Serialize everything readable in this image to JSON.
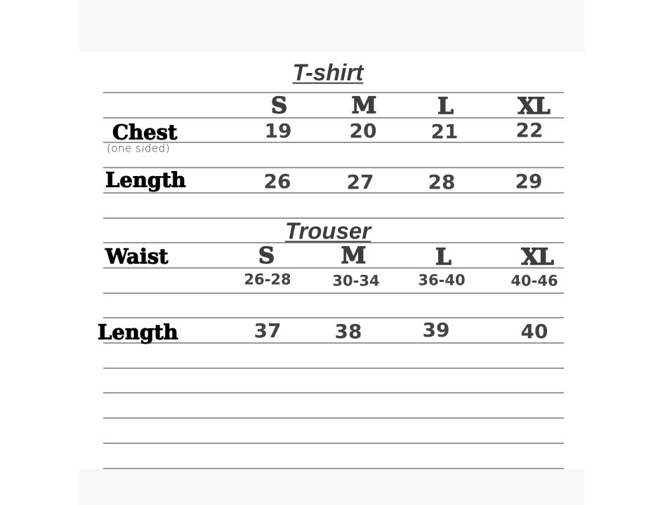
{
  "tshirt": {
    "title": "T-shirt",
    "sizes": [
      "S",
      "M",
      "L",
      "XL"
    ],
    "chest_label": "Chest",
    "chest_note": "(one sided)",
    "chest": [
      "19",
      "20",
      "21",
      "22"
    ],
    "length_label": "Length",
    "length": [
      "26",
      "27",
      "28",
      "29"
    ]
  },
  "trouser": {
    "title": "Trouser",
    "waist_label": "Waist",
    "sizes": [
      "S",
      "M",
      "L",
      "XL"
    ],
    "waist": [
      "26-28",
      "30-34",
      "36-40",
      "40-46"
    ],
    "length_label": "Length",
    "length": [
      "37",
      "38",
      "39",
      "40"
    ]
  }
}
